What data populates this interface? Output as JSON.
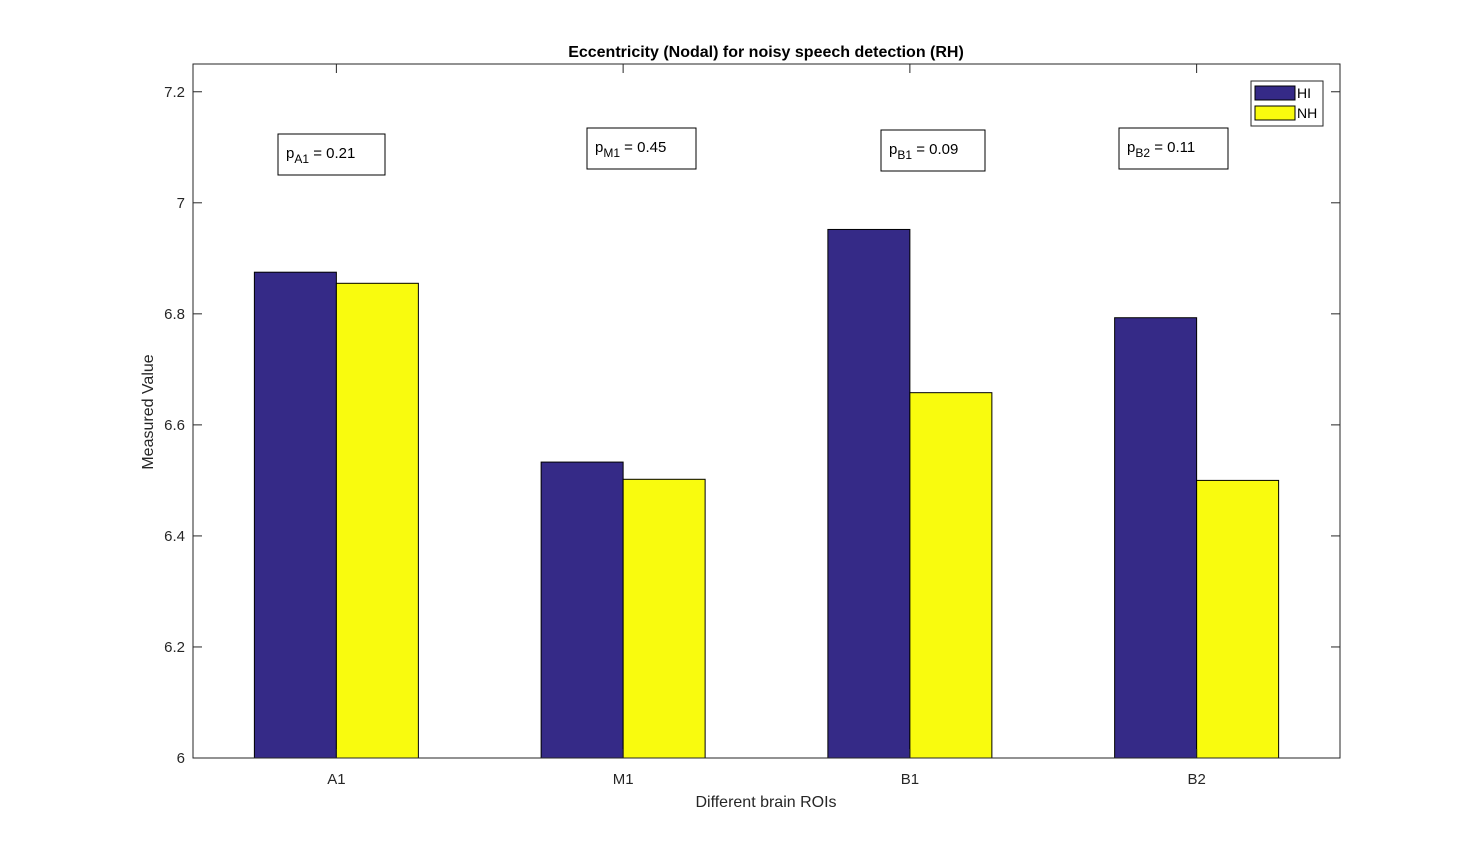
{
  "chart_data": {
    "type": "bar",
    "title": "Eccentricity (Nodal) for noisy speech detection (RH)",
    "xlabel": "Different brain ROIs",
    "ylabel": "Measured Value",
    "categories": [
      "A1",
      "M1",
      "B1",
      "B2"
    ],
    "series": [
      {
        "name": "HI",
        "color": "#352a87",
        "values": [
          6.875,
          6.533,
          6.952,
          6.793
        ]
      },
      {
        "name": "NH",
        "color": "#f9fb0e",
        "values": [
          6.855,
          6.502,
          6.658,
          6.5
        ]
      }
    ],
    "ylim": [
      6,
      7.25
    ],
    "yticks": [
      6,
      6.2,
      6.4,
      6.6,
      6.8,
      7,
      7.2
    ],
    "ytick_labels": [
      "6",
      "6.2",
      "6.4",
      "6.6",
      "6.8",
      "7",
      "7.2"
    ],
    "legend_position": "top-right",
    "grid": false,
    "annotations": [
      {
        "prefix": "p",
        "subscript": "A1",
        "suffix": " = 0.21"
      },
      {
        "prefix": "p",
        "subscript": "M1",
        "suffix": " = 0.45"
      },
      {
        "prefix": "p",
        "subscript": "B1",
        "suffix": " = 0.09"
      },
      {
        "prefix": "p",
        "subscript": "B2",
        "suffix": " = 0.11"
      }
    ]
  }
}
